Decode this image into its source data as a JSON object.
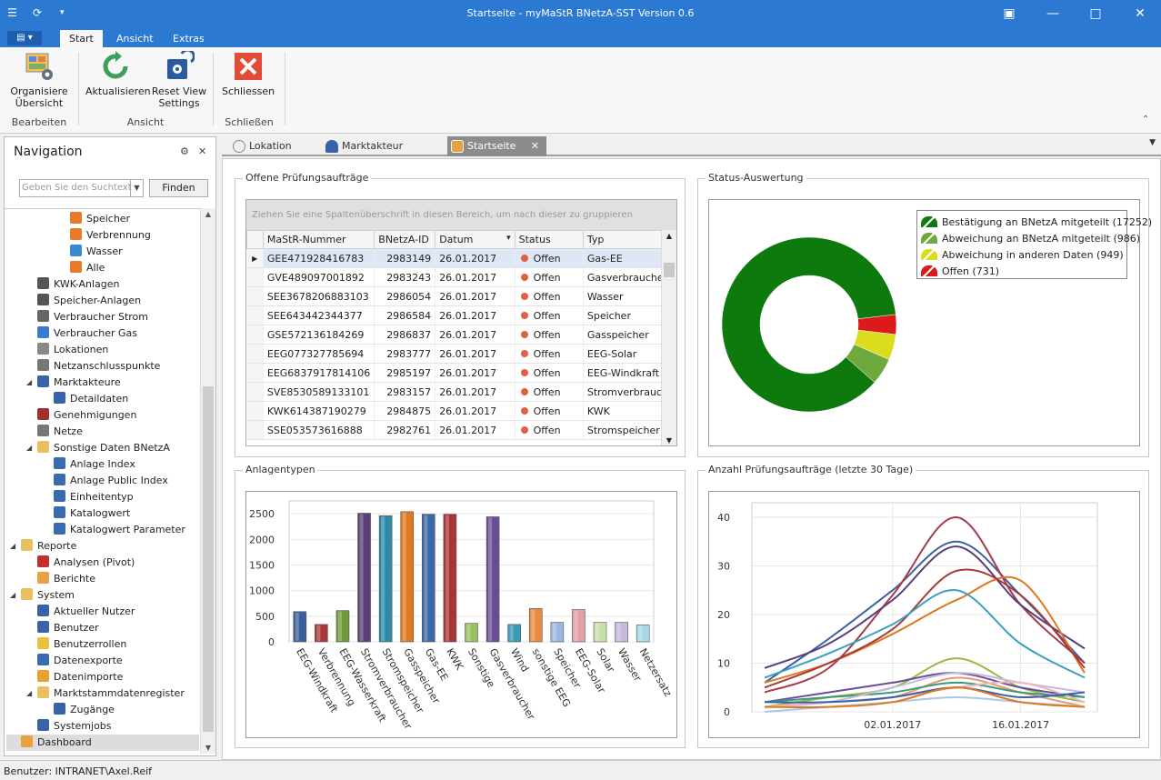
{
  "window": {
    "title": "Startseite - myMaStR BNetzA-SST Version 0.6"
  },
  "ribbon": {
    "file_label": "▤ ▾",
    "tabs": [
      "Start",
      "Ansicht",
      "Extras"
    ],
    "buttons": {
      "organize": "Organisiere Übersicht",
      "refresh": "Aktualisieren",
      "reset": "Reset View Settings",
      "close": "Schliessen"
    },
    "groups": {
      "edit": "Bearbeiten",
      "view": "Ansicht",
      "close": "Schließen"
    }
  },
  "nav": {
    "title": "Navigation",
    "search_placeholder": "Geben Sie den Suchtext",
    "find_label": "Finden",
    "items": [
      {
        "label": "Speicher",
        "icon": "e-energy-icon",
        "level": 4
      },
      {
        "label": "Verbrennung",
        "icon": "e-energy-icon",
        "level": 4
      },
      {
        "label": "Wasser",
        "icon": "e-water-icon",
        "level": 4
      },
      {
        "label": "Alle",
        "icon": "e-energy-icon",
        "level": 4
      },
      {
        "label": "KWK-Anlagen",
        "icon": "kwk-icon",
        "level": 2
      },
      {
        "label": "Speicher-Anlagen",
        "icon": "storage-icon",
        "level": 2
      },
      {
        "label": "Verbraucher Strom",
        "icon": "plug-icon",
        "level": 2
      },
      {
        "label": "Verbraucher Gas",
        "icon": "flame-icon",
        "level": 2
      },
      {
        "label": "Lokationen",
        "icon": "globe-icon",
        "level": 2
      },
      {
        "label": "Netzanschlusspunkte",
        "icon": "connector-icon",
        "level": 2
      },
      {
        "label": "Marktakteure",
        "icon": "person-icon",
        "level": 2,
        "expanded": true
      },
      {
        "label": "Detaildaten",
        "icon": "person-icon",
        "level": 3
      },
      {
        "label": "Genehmigungen",
        "icon": "permit-icon",
        "level": 2
      },
      {
        "label": "Netze",
        "icon": "pylon-icon",
        "level": 2
      },
      {
        "label": "Sonstige Daten BNetzA",
        "icon": "folder-icon",
        "level": 2,
        "expanded": true
      },
      {
        "label": "Anlage Index",
        "icon": "gear-icon",
        "level": 3
      },
      {
        "label": "Anlage Public Index",
        "icon": "gear-icon",
        "level": 3
      },
      {
        "label": "Einheitentyp",
        "icon": "gear-icon",
        "level": 3
      },
      {
        "label": "Katalogwert",
        "icon": "table-icon",
        "level": 3
      },
      {
        "label": "Katalogwert Parameter",
        "icon": "table-icon",
        "level": 3
      },
      {
        "label": "Reporte",
        "icon": "folder-icon",
        "level": 1,
        "expanded": true
      },
      {
        "label": "Analysen (Pivot)",
        "icon": "barchart-icon",
        "level": 2
      },
      {
        "label": "Berichte",
        "icon": "report-icon",
        "level": 2
      },
      {
        "label": "System",
        "icon": "folder-icon",
        "level": 1,
        "expanded": true
      },
      {
        "label": "Aktueller Nutzer",
        "icon": "person-icon",
        "level": 2
      },
      {
        "label": "Benutzer",
        "icon": "users-icon",
        "level": 2
      },
      {
        "label": "Benutzerrollen",
        "icon": "mask-icon",
        "level": 2
      },
      {
        "label": "Datenexporte",
        "icon": "table-icon",
        "level": 2
      },
      {
        "label": "Datenimporte",
        "icon": "database-icon",
        "level": 2
      },
      {
        "label": "Marktstammdatenregister",
        "icon": "folder-icon",
        "level": 2,
        "expanded": true
      },
      {
        "label": "Zugänge",
        "icon": "person-icon",
        "level": 3
      },
      {
        "label": "Systemjobs",
        "icon": "clock-gear-icon",
        "level": 2
      },
      {
        "label": "Dashboard",
        "icon": "dashboard-icon",
        "level": 1,
        "selected": true
      }
    ]
  },
  "doc_tabs": [
    {
      "label": "Lokation",
      "icon": "globe-icon"
    },
    {
      "label": "Marktakteur Detail",
      "icon": "person-icon"
    },
    {
      "label": "Startseite",
      "icon": "dashboard-icon",
      "active": true
    }
  ],
  "panels": {
    "open_orders": "Offene Prüfungsaufträge",
    "status": "Status-Auswertung",
    "plant_types": "Anlagentypen",
    "orders_count": "Anzahl Prüfungsaufträge (letzte 30 Tage)"
  },
  "grid": {
    "group_hint": "Ziehen Sie eine Spaltenüberschrift in diesen Bereich, um nach dieser zu gruppieren",
    "columns": [
      "MaStR-Nummer",
      "BNetzA-ID",
      "Datum",
      "Status",
      "Typ"
    ],
    "rows": [
      [
        "GEE471928416783",
        "2983149",
        "26.01.2017",
        "Offen",
        "Gas-EE"
      ],
      [
        "GVE489097001892",
        "2983243",
        "26.01.2017",
        "Offen",
        "Gasverbraucher"
      ],
      [
        "SEE3678206883103",
        "2986054",
        "26.01.2017",
        "Offen",
        "Wasser"
      ],
      [
        "SEE643442344377",
        "2986584",
        "26.01.2017",
        "Offen",
        "Speicher"
      ],
      [
        "GSE572136184269",
        "2986837",
        "26.01.2017",
        "Offen",
        "Gasspeicher"
      ],
      [
        "EEG077327785694",
        "2983777",
        "26.01.2017",
        "Offen",
        "EEG-Solar"
      ],
      [
        "EEG6837917814106",
        "2985197",
        "26.01.2017",
        "Offen",
        "EEG-Windkraft"
      ],
      [
        "SVE8530589133101",
        "2983157",
        "26.01.2017",
        "Offen",
        "Stromverbrauc…"
      ],
      [
        "KWK614387190279",
        "2984875",
        "26.01.2017",
        "Offen",
        "KWK"
      ],
      [
        "SSE053573616888",
        "2982761",
        "26.01.2017",
        "Offen",
        "Stromspeicher"
      ]
    ]
  },
  "chart_data": [
    {
      "type": "pie",
      "variant": "donut",
      "series": [
        {
          "name": "Bestätigung an BNetzA mitgeteilt (17252)",
          "value": 17252,
          "color": "#0e7a0e"
        },
        {
          "name": "Abweichung an BNetzA mitgeteilt (986)",
          "value": 986,
          "color": "#6fa83c"
        },
        {
          "name": "Abweichung in anderen Daten (949)",
          "value": 949,
          "color": "#dcdc1e"
        },
        {
          "name": "Offen (731)",
          "value": 731,
          "color": "#dd1a1a"
        }
      ],
      "legend": "top-right"
    },
    {
      "type": "bar",
      "categories": [
        "EEG-Windkraft",
        "Verbrennung",
        "EEG-Wasserkraft",
        "Stromverbraucher",
        "Stromspeicher",
        "Gasspeicher",
        "Gas-EE",
        "KWK",
        "Sonstige",
        "Gasverbraucher",
        "Wind",
        "sonstige EEG",
        "Speicher",
        "EEG-Solar",
        "Solar",
        "Wasser",
        "Netzersatz"
      ],
      "values": [
        590,
        340,
        610,
        2510,
        2460,
        2540,
        2490,
        2490,
        360,
        2440,
        340,
        650,
        380,
        630,
        380,
        380,
        330
      ],
      "colors": [
        "#3a5f9b",
        "#a83a3a",
        "#6f9a3a",
        "#5a3f7a",
        "#2e8aa6",
        "#e07a20",
        "#3a6aa6",
        "#a83434",
        "#9ac060",
        "#6a4e94",
        "#3a9ab8",
        "#e88a40",
        "#9ab8de",
        "#e0a0a8",
        "#c8deaa",
        "#c8b8dc",
        "#a8d8e8"
      ],
      "ylim": [
        0,
        2750
      ],
      "yticks": [
        0,
        500,
        1000,
        1500,
        2000,
        2500
      ],
      "grid": true
    },
    {
      "type": "line",
      "x": [
        "23.12.2016",
        "27.12.2016",
        "02.01.2017",
        "09.01.2017",
        "16.01.2017",
        "23.01.2017"
      ],
      "xticks": [
        "02.01.2017",
        "16.01.2017"
      ],
      "ylim": [
        0,
        43
      ],
      "yticks": [
        0,
        10,
        20,
        30,
        40
      ],
      "grid": true,
      "series": [
        {
          "color": "#3a62a8",
          "values": [
            6,
            15,
            25,
            35,
            24,
            10
          ]
        },
        {
          "color": "#a83a48",
          "values": [
            4,
            9,
            24,
            40,
            22,
            10
          ]
        },
        {
          "color": "#5a3f7a",
          "values": [
            9,
            14,
            23,
            34,
            22,
            13
          ]
        },
        {
          "color": "#e07820",
          "values": [
            6,
            10,
            16,
            23,
            27,
            8
          ]
        },
        {
          "color": "#a83a3a",
          "values": [
            5,
            10,
            17,
            29,
            24,
            9
          ]
        },
        {
          "color": "#38a0c0",
          "values": [
            7,
            12,
            18,
            25,
            14,
            7
          ]
        },
        {
          "color": "#9ab84a",
          "values": [
            1,
            3,
            5,
            11,
            5,
            2
          ]
        },
        {
          "color": "#6a4e94",
          "values": [
            2,
            4,
            6,
            8,
            5,
            3
          ]
        },
        {
          "color": "#e89870",
          "values": [
            1,
            2,
            3,
            7,
            4,
            1
          ]
        },
        {
          "color": "#3a9a7a",
          "values": [
            2,
            3,
            4,
            6,
            4,
            3
          ]
        },
        {
          "color": "#c8b8dc",
          "values": [
            1,
            2,
            5,
            8,
            6,
            4
          ]
        },
        {
          "color": "#e8b8c0",
          "values": [
            1,
            2,
            3,
            5,
            6,
            2
          ]
        },
        {
          "color": "#a8c8e8",
          "values": [
            0,
            1,
            2,
            3,
            2,
            1
          ]
        },
        {
          "color": "#3a62a8",
          "values": [
            2,
            2,
            3,
            5,
            3,
            4
          ]
        },
        {
          "color": "#e07820",
          "values": [
            1,
            1,
            2,
            5,
            2,
            1
          ]
        }
      ]
    }
  ],
  "statusbar": {
    "user": "Benutzer: INTRANET\\Axel.Reif"
  }
}
